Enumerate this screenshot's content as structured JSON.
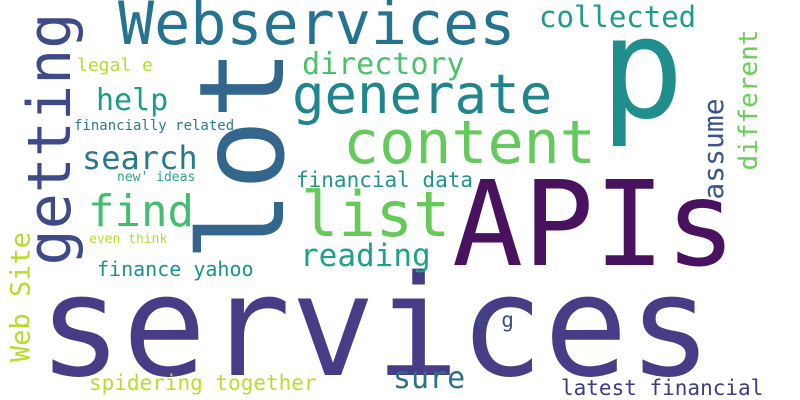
{
  "words": {
    "services": {
      "text": "services",
      "color": "#463d86"
    },
    "apis": {
      "text": "APIs",
      "color": "#48125f"
    },
    "p": {
      "text": "p",
      "color": "#208e8c"
    },
    "lot": {
      "text": "lot",
      "color": "#32668c"
    },
    "webservices": {
      "text": "Webservices",
      "color": "#25738e"
    },
    "generate": {
      "text": "generate",
      "color": "#21858d"
    },
    "content": {
      "text": "content",
      "color": "#65ca5d"
    },
    "list": {
      "text": "list",
      "color": "#66c958"
    },
    "getting": {
      "text": "getting",
      "color": "#3f4a88"
    },
    "find": {
      "text": "find",
      "color": "#43be70"
    },
    "collected": {
      "text": "collected",
      "color": "#1e9b8a"
    },
    "directory": {
      "text": "directory",
      "color": "#4cc16a"
    },
    "help": {
      "text": "help",
      "color": "#1d9a89"
    },
    "search": {
      "text": "search",
      "color": "#2a788e"
    },
    "reading": {
      "text": "reading",
      "color": "#1fa187"
    },
    "sure": {
      "text": "sure",
      "color": "#2c708e"
    },
    "financial_data": {
      "text": "financial data",
      "color": "#1f958b"
    },
    "finance_yahoo": {
      "text": "finance yahoo",
      "color": "#1d928c"
    },
    "spidering": {
      "text": "spidering together",
      "color": "#b8de29"
    },
    "latest_financial": {
      "text": "latest financial",
      "color": "#3f3c82"
    },
    "legal_e": {
      "text": "legal e",
      "color": "#b5dd2b"
    },
    "e_g": {
      "text": "e g",
      "color": "#3e4c8a"
    },
    "financially": {
      "text": "financially related",
      "color": "#2b7b8e"
    },
    "new_ideas": {
      "text": "new' ideas",
      "color": "#26a884"
    },
    "even_think": {
      "text": "even think",
      "color": "#b3dd2e"
    },
    "different": {
      "text": "different",
      "color": "#6ccd5a"
    },
    "assume": {
      "text": "assume",
      "color": "#3a548c"
    },
    "web_site": {
      "text": "Web Site",
      "color": "#b6dd2b"
    }
  }
}
